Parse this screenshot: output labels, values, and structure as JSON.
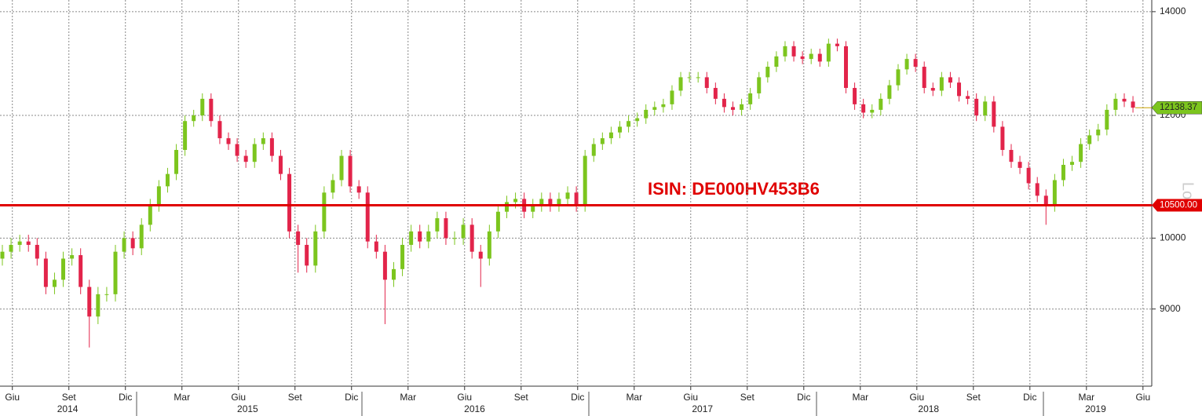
{
  "chart_data": {
    "type": "candlestick",
    "log_scale": true,
    "grid": true,
    "up_color": "#7cc51e",
    "down_color": "#e2244a",
    "ylim": [
      8025,
      14245
    ],
    "yticks": [
      9000,
      10000,
      12000,
      14000
    ],
    "xlim": [
      -0.27,
      132.16
    ],
    "xticks": [
      {
        "value": 1.15,
        "label": "Giu"
      },
      {
        "value": 7.65,
        "label": "Set"
      },
      {
        "value": 14.15,
        "label": "Dic"
      },
      {
        "value": 20.65,
        "label": "Mar"
      },
      {
        "value": 27.15,
        "label": "Giu"
      },
      {
        "value": 33.65,
        "label": "Set"
      },
      {
        "value": 40.15,
        "label": "Dic"
      },
      {
        "value": 46.65,
        "label": "Mar"
      },
      {
        "value": 53.15,
        "label": "Giu"
      },
      {
        "value": 59.65,
        "label": "Set"
      },
      {
        "value": 66.15,
        "label": "Dic"
      },
      {
        "value": 72.65,
        "label": "Mar"
      },
      {
        "value": 79.15,
        "label": "Giu"
      },
      {
        "value": 85.65,
        "label": "Set"
      },
      {
        "value": 92.15,
        "label": "Dic"
      },
      {
        "value": 98.65,
        "label": "Mar"
      },
      {
        "value": 105.15,
        "label": "Giu"
      },
      {
        "value": 111.65,
        "label": "Set"
      },
      {
        "value": 118.15,
        "label": "Dic"
      },
      {
        "value": 124.65,
        "label": "Mar"
      },
      {
        "value": 131.15,
        "label": "Giu"
      }
    ],
    "year_labels": [
      {
        "value": 7.5,
        "label": "2014"
      },
      {
        "value": 28.2,
        "label": "2015"
      },
      {
        "value": 54.3,
        "label": "2016"
      },
      {
        "value": 80.5,
        "label": "2017"
      },
      {
        "value": 106.5,
        "label": "2018"
      },
      {
        "value": 125.7,
        "label": "2019"
      }
    ],
    "open": [
      9700,
      9800,
      9900,
      9950,
      9900,
      9700,
      9300,
      9400,
      9700,
      9750,
      9300,
      8900,
      9200,
      9200,
      9800,
      10000,
      9850,
      10200,
      10500,
      10800,
      11000,
      11400,
      11900,
      12000,
      12300,
      11900,
      11600,
      11500,
      11300,
      11200,
      11500,
      11600,
      11300,
      11000,
      10100,
      9900,
      9600,
      10100,
      10700,
      10900,
      11300,
      10800,
      10700,
      9950,
      9800,
      9400,
      9550,
      9900,
      10100,
      9950,
      10100,
      10300,
      10000,
      10000,
      10200,
      9800,
      9700,
      10100,
      10400,
      10550,
      10600,
      10400,
      10500,
      10600,
      10500,
      10600,
      10700,
      10500,
      11300,
      11500,
      11600,
      11700,
      11800,
      11900,
      11950,
      12100,
      12150,
      12200,
      12450,
      12700,
      12700,
      12700,
      12500,
      12300,
      12150,
      12100,
      12200,
      12400,
      12700,
      12900,
      13100,
      13300,
      13100,
      13050,
      13150,
      13000,
      13350,
      13300,
      12500,
      12200,
      12050,
      12100,
      12300,
      12550,
      12850,
      13050,
      12900,
      12500,
      12450,
      12700,
      12600,
      12350,
      12300,
      12000,
      12250,
      11800,
      11400,
      11200,
      11100,
      10850,
      10650,
      10500,
      10900,
      11150,
      11200,
      11500,
      11650,
      11750,
      12100,
      12300,
      12250
    ],
    "high": [
      9900,
      10000,
      10050,
      10050,
      10000,
      9800,
      9500,
      9800,
      9850,
      9850,
      9400,
      9300,
      9300,
      9900,
      10100,
      10100,
      10300,
      10600,
      10900,
      11100,
      11500,
      12000,
      12100,
      12400,
      12400,
      12000,
      11700,
      11600,
      11400,
      11600,
      11700,
      11700,
      11400,
      11100,
      10200,
      10000,
      10200,
      10800,
      11000,
      11400,
      11400,
      10900,
      10800,
      10050,
      9900,
      9650,
      10000,
      10200,
      10200,
      10200,
      10400,
      10400,
      10100,
      10300,
      10300,
      9900,
      10200,
      10500,
      10650,
      10700,
      10700,
      10600,
      10700,
      10700,
      10700,
      10800,
      10800,
      11400,
      11600,
      11700,
      11800,
      11900,
      12000,
      12050,
      12200,
      12250,
      12300,
      12550,
      12800,
      12800,
      12800,
      12800,
      12600,
      12400,
      12250,
      12300,
      12500,
      12800,
      13000,
      13200,
      13400,
      13400,
      13200,
      13250,
      13250,
      13450,
      13450,
      13400,
      12600,
      12300,
      12200,
      12400,
      12650,
      12950,
      13150,
      13150,
      13000,
      12600,
      12800,
      12800,
      12700,
      12450,
      12400,
      12350,
      12350,
      11900,
      11500,
      11300,
      11200,
      10950,
      10750,
      11000,
      11250,
      11300,
      11600,
      11750,
      11850,
      12200,
      12400,
      12400,
      12350
    ],
    "low": [
      9600,
      9700,
      9800,
      9800,
      9600,
      9200,
      9200,
      9300,
      9600,
      9200,
      8500,
      8800,
      9100,
      9100,
      9700,
      9750,
      9750,
      10100,
      10400,
      10700,
      10900,
      11300,
      11800,
      11900,
      11800,
      11500,
      11400,
      11200,
      11100,
      11100,
      11400,
      11200,
      10900,
      10000,
      9500,
      9500,
      9500,
      10000,
      10600,
      10800,
      10700,
      10600,
      9850,
      9700,
      8800,
      9300,
      9450,
      9800,
      9850,
      9850,
      10000,
      9900,
      9900,
      9900,
      9700,
      9300,
      9600,
      10000,
      10300,
      10450,
      10300,
      10300,
      10400,
      10400,
      10400,
      10500,
      10400,
      10400,
      11200,
      11400,
      11500,
      11600,
      11700,
      11800,
      11850,
      12000,
      12050,
      12100,
      12350,
      12600,
      12600,
      12400,
      12200,
      12050,
      12000,
      12000,
      12100,
      12300,
      12600,
      12800,
      13000,
      13000,
      12950,
      12950,
      12900,
      12900,
      13200,
      12400,
      12100,
      11950,
      11950,
      12000,
      12200,
      12450,
      12750,
      12800,
      12400,
      12350,
      12350,
      12500,
      12250,
      12200,
      11900,
      11900,
      11700,
      11300,
      11100,
      11000,
      10750,
      10550,
      10200,
      10400,
      10800,
      11050,
      11100,
      11400,
      11550,
      11650,
      12000,
      12150,
      12050
    ],
    "close": [
      9800,
      9900,
      9950,
      9900,
      9700,
      9300,
      9400,
      9700,
      9750,
      9300,
      8900,
      9200,
      9200,
      9800,
      10000,
      9850,
      10200,
      10500,
      10800,
      11000,
      11400,
      11900,
      12000,
      12300,
      11900,
      11600,
      11500,
      11300,
      11200,
      11500,
      11600,
      11300,
      11000,
      10100,
      9900,
      9600,
      10100,
      10700,
      10900,
      11300,
      10800,
      10700,
      9950,
      9800,
      9400,
      9550,
      9900,
      10100,
      9950,
      10100,
      10300,
      10000,
      10000,
      10200,
      9800,
      9700,
      10100,
      10400,
      10550,
      10600,
      10400,
      10500,
      10600,
      10500,
      10600,
      10700,
      10500,
      11300,
      11500,
      11600,
      11700,
      11800,
      11900,
      11950,
      12100,
      12150,
      12200,
      12450,
      12700,
      12700,
      12700,
      12500,
      12300,
      12150,
      12100,
      12200,
      12400,
      12700,
      12900,
      13100,
      13300,
      13100,
      13050,
      13150,
      13000,
      13350,
      13300,
      12500,
      12200,
      12050,
      12100,
      12300,
      12550,
      12850,
      13050,
      12900,
      12500,
      12450,
      12700,
      12600,
      12350,
      12300,
      12000,
      12250,
      11800,
      11400,
      11200,
      11100,
      10850,
      10650,
      10500,
      10900,
      11150,
      11200,
      11500,
      11650,
      11750,
      12100,
      12300,
      12250,
      12138.37
    ],
    "reference_line": {
      "value": 10500,
      "label": "10500.00",
      "color": "#e00000"
    },
    "annotation": "ISIN: DE000HV453B6",
    "y_axis_label": "Lo"
  }
}
